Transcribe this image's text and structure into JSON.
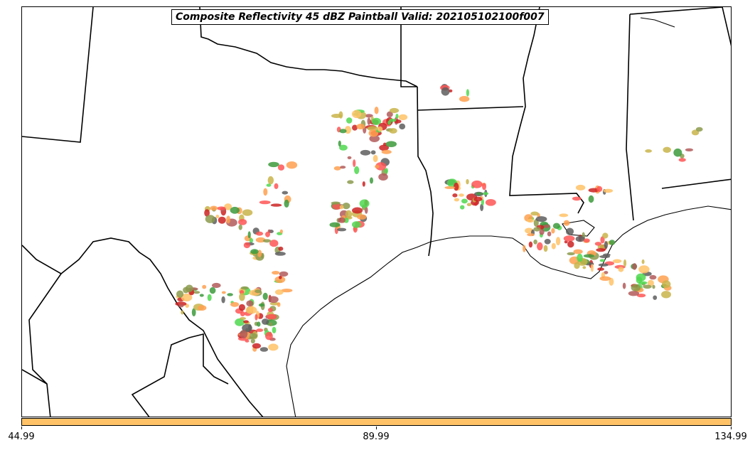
{
  "title": "Composite Reflectivity 45 dBZ Paintball Valid: 202105102100f007",
  "colors": {
    "colorbar": "#ffc266",
    "border": "#000000",
    "members": [
      "#ff5555",
      "#4fd84f",
      "#b35b5b",
      "#5e5e5e",
      "#8b9a4c",
      "#ffa04f",
      "#ffc266",
      "#c9b44a",
      "#3c9a3c",
      "#cc2222"
    ]
  },
  "colorbar": {
    "ticks": [
      "44.99",
      "89.99",
      "134.99"
    ]
  }
}
